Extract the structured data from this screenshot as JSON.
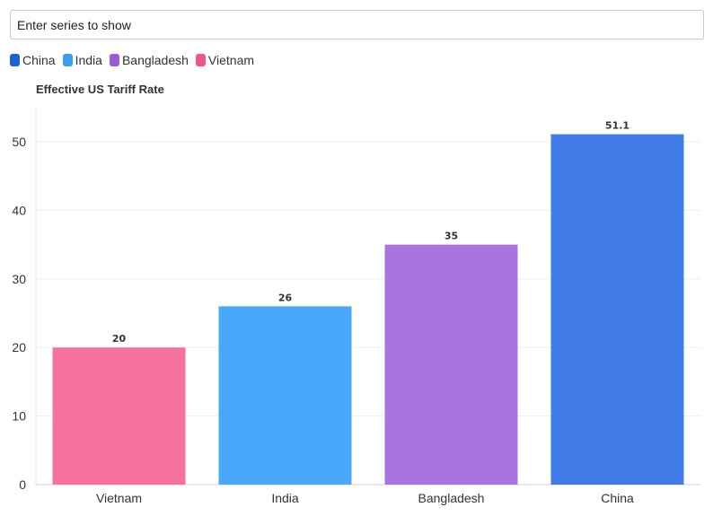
{
  "search": {
    "placeholder": "Enter series to show",
    "value": ""
  },
  "legend": [
    {
      "label": "China",
      "color": "#1f5fd6"
    },
    {
      "label": "India",
      "color": "#3d9cf0"
    },
    {
      "label": "Bangladesh",
      "color": "#9b5ad8"
    },
    {
      "label": "Vietnam",
      "color": "#f0568a"
    }
  ],
  "chart_data": {
    "type": "bar",
    "title": "Effective US Tariff Rate",
    "categories": [
      "Vietnam",
      "India",
      "Bangladesh",
      "China"
    ],
    "values": [
      20,
      26,
      35,
      51.1
    ],
    "value_labels": [
      "20",
      "26",
      "35",
      "51.1"
    ],
    "colors": [
      "#f7719f",
      "#4aa8fb",
      "#a974e0",
      "#407be8"
    ],
    "xlabel": "",
    "ylabel": "",
    "ylim": [
      0,
      55
    ],
    "yticks": [
      0,
      10,
      20,
      30,
      40,
      50
    ],
    "grid": true,
    "legend_placement": "top-left"
  }
}
